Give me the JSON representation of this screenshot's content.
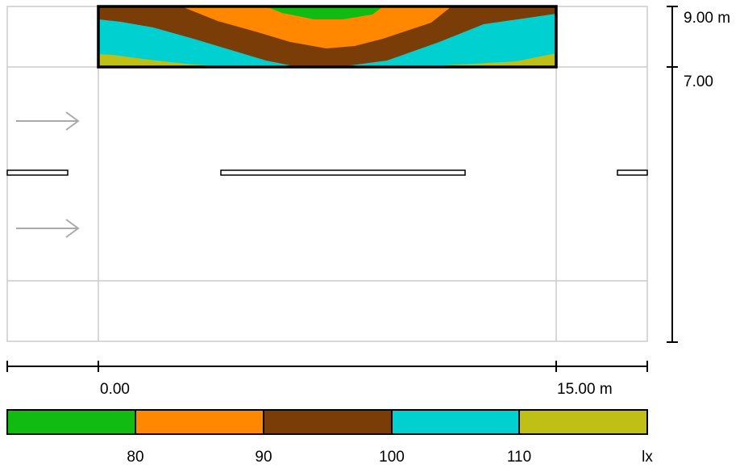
{
  "scale_labels": {
    "y_top": "9.00 m",
    "y_mid": "7.00",
    "x_left": "0.00",
    "x_right": "15.00 m"
  },
  "legend": {
    "unit": "lx",
    "colors": [
      "#11bb11",
      "#ff8800",
      "#7a3d08",
      "#00d0d0",
      "#bfbf15"
    ],
    "thresholds": [
      "80",
      "90",
      "100",
      "110"
    ]
  },
  "arrows": [
    {
      "name": "upper-traffic-direction-arrow",
      "direction": "right"
    },
    {
      "name": "lower-traffic-direction-arrow",
      "direction": "right"
    }
  ]
}
